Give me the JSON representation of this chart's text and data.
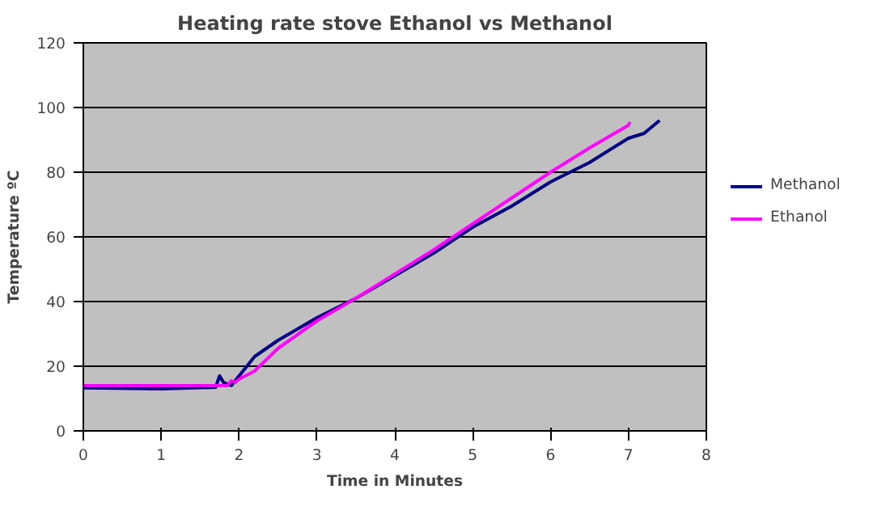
{
  "chart_data": {
    "type": "line",
    "title": "Heating rate stove Ethanol vs Methanol",
    "xlabel": "Time in Minutes",
    "ylabel": "Temperature ºC",
    "xlim": [
      0,
      8
    ],
    "xticks": [
      0,
      1,
      2,
      3,
      4,
      5,
      6,
      7,
      8
    ],
    "ylim": [
      0,
      120
    ],
    "yticks": [
      0,
      20,
      40,
      60,
      80,
      100,
      120
    ],
    "grid": "y",
    "legend": "right",
    "series": [
      {
        "name": "Methanol",
        "color": "#000080",
        "x": [
          0,
          1,
          1.7,
          1.75,
          1.8,
          1.9,
          2.0,
          2.2,
          2.5,
          3,
          3.5,
          4,
          4.5,
          5,
          5.5,
          6,
          6.5,
          7,
          7.2,
          7.4
        ],
        "values": [
          13.3,
          13,
          13.5,
          17,
          15,
          14,
          17,
          23,
          28,
          35,
          41,
          48,
          55,
          63,
          69.5,
          77,
          83,
          90.5,
          92,
          96
        ]
      },
      {
        "name": "Ethanol",
        "color": "#ff00ff",
        "x": [
          0,
          1.85,
          1.9,
          1.95,
          2,
          2.2,
          2.5,
          3,
          3.5,
          4,
          4.5,
          5,
          5.5,
          6,
          6.5,
          7,
          7.02
        ],
        "values": [
          14,
          14,
          15.5,
          15,
          16,
          18.5,
          25.5,
          34,
          41,
          48.5,
          56,
          64,
          72,
          80,
          87.5,
          94.5,
          95.5
        ]
      }
    ]
  }
}
